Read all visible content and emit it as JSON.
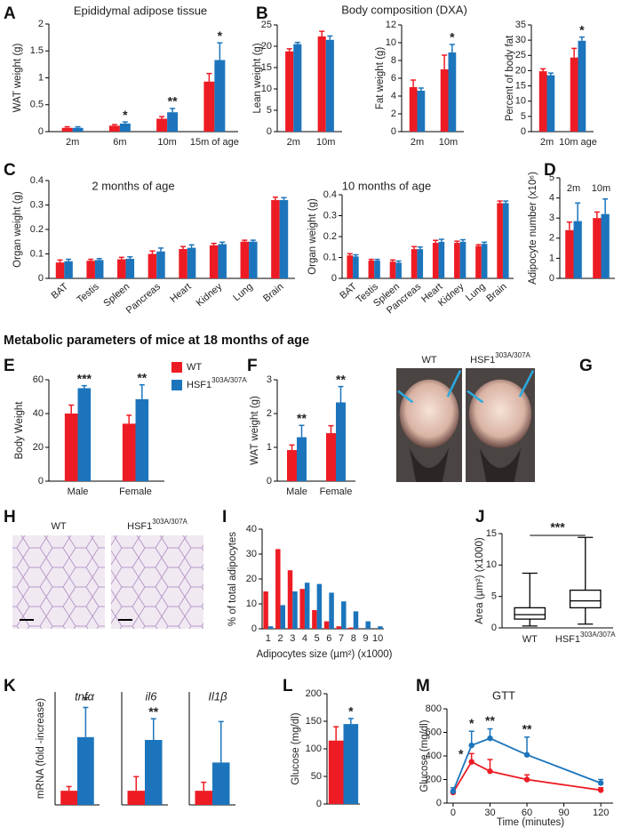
{
  "heading": "Metabolic parameters of mice at 18 months of age",
  "chart_data": [
    {
      "panel": "A",
      "type": "bar",
      "title": "Epididymal adipose tissue",
      "ylabel": "WAT weight (g)",
      "categories": [
        "2m",
        "6m",
        "10m",
        "15m of age"
      ],
      "series": [
        {
          "color": "#ed1c24",
          "values": [
            0.07,
            0.11,
            0.24,
            0.93
          ],
          "errors": [
            0.02,
            0.02,
            0.04,
            0.15
          ]
        },
        {
          "color": "#1c75bc",
          "values": [
            0.07,
            0.15,
            0.36,
            1.33
          ],
          "errors": [
            0.02,
            0.03,
            0.07,
            0.32
          ]
        }
      ],
      "annotations": [
        null,
        "*",
        "**",
        "*"
      ],
      "ylim": [
        0,
        2
      ],
      "yticks": [
        0,
        0.5,
        1,
        1.5,
        2
      ]
    },
    {
      "panel": "B",
      "type": "bar",
      "title": "Body composition (DXA)",
      "ylabel": "Lean weight (g)",
      "categories": [
        "2m",
        "10m"
      ],
      "series": [
        {
          "color": "#ed1c24",
          "values": [
            18.8,
            22.3
          ],
          "errors": [
            0.6,
            1.2
          ]
        },
        {
          "color": "#1c75bc",
          "values": [
            20.5,
            21.5
          ],
          "errors": [
            0.4,
            0.9
          ]
        }
      ],
      "ylim": [
        0,
        25
      ],
      "yticks": [
        0,
        5,
        10,
        15,
        20,
        25
      ]
    },
    {
      "type": "bar",
      "ylabel": "Fat weight (g)",
      "categories": [
        "2m",
        "10m"
      ],
      "series": [
        {
          "color": "#ed1c24",
          "values": [
            5,
            7
          ],
          "errors": [
            0.8,
            1.6
          ]
        },
        {
          "color": "#1c75bc",
          "values": [
            4.6,
            8.9
          ],
          "errors": [
            0.3,
            0.9
          ]
        }
      ],
      "annotations": [
        null,
        "*"
      ],
      "ylim": [
        0,
        12
      ],
      "yticks": [
        0,
        2,
        4,
        6,
        8,
        10,
        12
      ]
    },
    {
      "type": "bar",
      "ylabel": "Percent of body fat",
      "categories": [
        "2m",
        "10m age"
      ],
      "series": [
        {
          "color": "#ed1c24",
          "values": [
            19.8,
            24.3
          ],
          "errors": [
            0.8,
            3
          ]
        },
        {
          "color": "#1c75bc",
          "values": [
            18.5,
            29.8
          ],
          "errors": [
            0.7,
            1.2
          ]
        }
      ],
      "annotations": [
        null,
        "*"
      ],
      "ylim": [
        0,
        35
      ],
      "yticks": [
        0,
        5,
        10,
        15,
        20,
        25,
        30,
        35
      ]
    },
    {
      "panel": "C",
      "type": "bar",
      "title": "2 months of age",
      "ylabel": "Organ weight (g)",
      "categories": [
        "BAT",
        "Testis",
        "Spleen",
        "Pancreas",
        "Heart",
        "Kidney",
        "Lung",
        "Brain"
      ],
      "series": [
        {
          "color": "#ed1c24",
          "values": [
            0.065,
            0.072,
            0.078,
            0.1,
            0.12,
            0.135,
            0.15,
            0.32
          ],
          "errors": [
            0.01,
            0.006,
            0.008,
            0.012,
            0.01,
            0.008,
            0.006,
            0.012
          ]
        },
        {
          "color": "#1c75bc",
          "values": [
            0.07,
            0.075,
            0.08,
            0.11,
            0.125,
            0.14,
            0.15,
            0.32
          ],
          "errors": [
            0.008,
            0.006,
            0.008,
            0.014,
            0.012,
            0.008,
            0.006,
            0.01
          ]
        }
      ],
      "ylim": [
        0,
        0.4
      ],
      "yticks": [
        0,
        0.1,
        0.2,
        0.3,
        0.4
      ]
    },
    {
      "type": "bar",
      "title": "10 months of age",
      "ylabel": "Organ weight (g)",
      "categories": [
        "BAT",
        "Testis",
        "Spleen",
        "Pancreas",
        "Heart",
        "Kidney",
        "Lung",
        "Brain"
      ],
      "series": [
        {
          "color": "#ed1c24",
          "values": [
            0.11,
            0.085,
            0.08,
            0.14,
            0.17,
            0.17,
            0.155,
            0.36
          ],
          "errors": [
            0.008,
            0.006,
            0.008,
            0.012,
            0.012,
            0.008,
            0.006,
            0.01
          ]
        },
        {
          "color": "#1c75bc",
          "values": [
            0.105,
            0.085,
            0.075,
            0.14,
            0.175,
            0.175,
            0.165,
            0.36
          ],
          "errors": [
            0.008,
            0.006,
            0.008,
            0.01,
            0.012,
            0.01,
            0.008,
            0.01
          ]
        }
      ],
      "ylim": [
        0,
        0.4
      ],
      "yticks": [
        0,
        0.1,
        0.2,
        0.3,
        0.4
      ]
    },
    {
      "panel": "D",
      "type": "bar",
      "ylabel": "Adipocyte number (x10⁶)",
      "categories": [
        "2m",
        "10m"
      ],
      "series": [
        {
          "color": "#ed1c24",
          "values": [
            2.4,
            3
          ],
          "errors": [
            0.4,
            0.3
          ]
        },
        {
          "color": "#1c75bc",
          "values": [
            2.85,
            3.2
          ],
          "errors": [
            0.9,
            0.75
          ]
        }
      ],
      "ylim": [
        0,
        5
      ],
      "yticks": [
        0,
        1,
        2,
        3,
        4,
        5
      ]
    },
    {
      "panel": "E",
      "type": "bar",
      "ylabel": "Body Weight",
      "categories": [
        "Male",
        "Female"
      ],
      "series": [
        {
          "name": "WT",
          "color": "#ed1c24",
          "values": [
            40,
            34
          ],
          "errors": [
            5,
            5
          ]
        },
        {
          "name": "HSF1",
          "name_superscript": "303A/307A",
          "color": "#1c75bc",
          "values": [
            55,
            48.5
          ],
          "errors": [
            1.5,
            8.5
          ]
        }
      ],
      "legend": true,
      "annotations": [
        "***",
        "**"
      ],
      "ylim": [
        0,
        60
      ],
      "yticks": [
        0,
        20,
        40,
        60
      ]
    },
    {
      "panel": "F",
      "type": "bar",
      "ylabel": "WAT weight (g)",
      "categories": [
        "Male",
        "Female"
      ],
      "series": [
        {
          "color": "#ed1c24",
          "values": [
            0.92,
            1.42
          ],
          "errors": [
            0.15,
            0.22
          ]
        },
        {
          "color": "#1c75bc",
          "values": [
            1.3,
            2.33
          ],
          "errors": [
            0.35,
            0.47
          ]
        }
      ],
      "annotations": [
        "**",
        "**"
      ],
      "ylim": [
        0,
        3
      ],
      "yticks": [
        0,
        1,
        2,
        3
      ]
    },
    {
      "panel": "G",
      "type": "image",
      "labels": [
        "WT",
        "HSF1"
      ],
      "label_superscripts": [
        null,
        "303A/307A"
      ]
    },
    {
      "panel": "H",
      "type": "image",
      "labels": [
        "WT",
        "HSF1"
      ],
      "label_superscripts": [
        null,
        "303A/307A"
      ]
    },
    {
      "panel": "I",
      "type": "bar",
      "ylabel": "% of total adipocytes",
      "xlabel": "Adipocytes size (µm²) (x1000)",
      "categories": [
        "1",
        "2",
        "3",
        "4",
        "5",
        "6",
        "7",
        "8",
        "9",
        "10"
      ],
      "series": [
        {
          "color": "#ed1c24",
          "values": [
            15,
            32,
            23.5,
            16,
            7.5,
            3,
            1,
            0.5,
            0,
            0
          ]
        },
        {
          "color": "#1c75bc",
          "values": [
            1,
            9.5,
            15,
            18.5,
            18,
            14.5,
            11,
            7,
            3,
            1
          ]
        }
      ],
      "ylim": [
        0,
        40
      ],
      "yticks": [
        0,
        10,
        20,
        30,
        40
      ]
    },
    {
      "panel": "J",
      "type": "box",
      "ylabel": "Area (µm²) (x1000)",
      "categories": [
        "WT",
        "HSF1"
      ],
      "category_superscripts": [
        null,
        "303A/307A"
      ],
      "whisker_low": [
        0.3,
        0.6
      ],
      "q1": [
        1.4,
        3.2
      ],
      "median": [
        2.1,
        4.3
      ],
      "q3": [
        3.2,
        6
      ],
      "whisker_high": [
        8.7,
        14.4
      ],
      "annotation": "***",
      "ylim": [
        0,
        15
      ],
      "yticks": [
        0,
        5,
        10,
        15
      ]
    },
    {
      "panel": "K",
      "type": "bar",
      "title": "tnfα",
      "ylabel": "mRNA (fold -increase)",
      "series": [
        {
          "color": "#ed1c24",
          "values": [
            1
          ],
          "errors": [
            0.3
          ]
        },
        {
          "color": "#1c75bc",
          "values": [
            4.8
          ],
          "errors": [
            2.1
          ]
        }
      ],
      "annotations": [
        "*"
      ],
      "ylim": [
        0,
        8
      ]
    },
    {
      "type": "bar",
      "title": "il6",
      "series": [
        {
          "color": "#ed1c24",
          "values": [
            1
          ],
          "errors": [
            1
          ]
        },
        {
          "color": "#1c75bc",
          "values": [
            4.6
          ],
          "errors": [
            1.5
          ]
        }
      ],
      "annotations": [
        "**"
      ],
      "ylim": [
        0,
        8
      ]
    },
    {
      "type": "bar",
      "title": "Il1β",
      "series": [
        {
          "color": "#ed1c24",
          "values": [
            1
          ],
          "errors": [
            0.6
          ]
        },
        {
          "color": "#1c75bc",
          "values": [
            3
          ],
          "errors": [
            2.9
          ]
        }
      ],
      "ylim": [
        0,
        8
      ]
    },
    {
      "panel": "L",
      "type": "bar",
      "ylabel": "Glucose (mg/dl)",
      "series": [
        {
          "color": "#ed1c24",
          "values": [
            115
          ],
          "errors": [
            25
          ]
        },
        {
          "color": "#1c75bc",
          "values": [
            145
          ],
          "errors": [
            10
          ]
        }
      ],
      "annotations": [
        "*"
      ],
      "ylim": [
        0,
        200
      ],
      "yticks": [
        0,
        50,
        100,
        150,
        200
      ]
    },
    {
      "panel": "M",
      "type": "line",
      "title": "GTT",
      "ylabel": "Glucose (mg/dl)",
      "xlabel": "Time (minutes)",
      "x": [
        0,
        15,
        30,
        60,
        120
      ],
      "series": [
        {
          "color": "#ed1c24",
          "values": [
            90,
            350,
            270,
            200,
            110
          ],
          "errors": [
            20,
            70,
            100,
            40,
            20
          ]
        },
        {
          "color": "#1c75bc",
          "values": [
            100,
            490,
            550,
            410,
            170
          ],
          "errors": [
            30,
            120,
            80,
            150,
            30
          ]
        }
      ],
      "annotations": [
        null,
        [
          "*",
          "*"
        ],
        [
          "**"
        ],
        [
          "**"
        ],
        null
      ],
      "xlim": [
        -5,
        130
      ],
      "xticks": [
        0,
        30,
        60,
        90,
        120
      ],
      "ylim": [
        0,
        800
      ],
      "yticks": [
        0,
        200,
        400,
        600,
        800
      ]
    }
  ]
}
